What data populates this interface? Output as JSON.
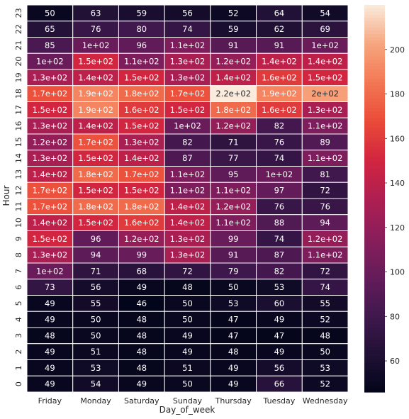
{
  "chart_data": {
    "type": "heatmap",
    "xlabel": "Day_of_week",
    "ylabel": "Hour",
    "x_categories": [
      "Friday",
      "Monday",
      "Saturday",
      "Sunday",
      "Thursday",
      "Tuesday",
      "Wednesday"
    ],
    "y_categories": [
      "23",
      "22",
      "21",
      "20",
      "19",
      "18",
      "17",
      "16",
      "15",
      "14",
      "13",
      "12",
      "11",
      "10",
      "9",
      "8",
      "7",
      "6",
      "5",
      "4",
      "3",
      "2",
      "1",
      "0"
    ],
    "values": [
      [
        50,
        63,
        59,
        56,
        52,
        64,
        54
      ],
      [
        65,
        76,
        80,
        74,
        59,
        62,
        69
      ],
      [
        85,
        100,
        96,
        110,
        91,
        91,
        100
      ],
      [
        100,
        150,
        110,
        130,
        120,
        140,
        140
      ],
      [
        130,
        140,
        150,
        130,
        140,
        160,
        150
      ],
      [
        170,
        190,
        180,
        170,
        220,
        190,
        200
      ],
      [
        150,
        190,
        160,
        150,
        180,
        160,
        130
      ],
      [
        130,
        140,
        150,
        100,
        120,
        82,
        110
      ],
      [
        120,
        170,
        130,
        82,
        71,
        76,
        89
      ],
      [
        130,
        150,
        140,
        87,
        77,
        74,
        110
      ],
      [
        140,
        180,
        170,
        110,
        95,
        100,
        81
      ],
      [
        170,
        150,
        150,
        110,
        110,
        97,
        72
      ],
      [
        170,
        180,
        180,
        140,
        120,
        76,
        76
      ],
      [
        140,
        150,
        160,
        140,
        110,
        88,
        94
      ],
      [
        150,
        96,
        120,
        130,
        99,
        74,
        120
      ],
      [
        130,
        94,
        99,
        130,
        91,
        87,
        110
      ],
      [
        100,
        71,
        68,
        72,
        79,
        82,
        72
      ],
      [
        73,
        56,
        49,
        48,
        50,
        53,
        74
      ],
      [
        49,
        55,
        46,
        50,
        53,
        60,
        55
      ],
      [
        49,
        50,
        48,
        50,
        47,
        49,
        52
      ],
      [
        48,
        50,
        48,
        49,
        47,
        47,
        48
      ],
      [
        49,
        51,
        48,
        49,
        48,
        49,
        50
      ],
      [
        49,
        53,
        48,
        51,
        49,
        56,
        53
      ],
      [
        49,
        54,
        49,
        50,
        49,
        66,
        52
      ]
    ],
    "labels": [
      [
        "50",
        "63",
        "59",
        "56",
        "52",
        "64",
        "54"
      ],
      [
        "65",
        "76",
        "80",
        "74",
        "59",
        "62",
        "69"
      ],
      [
        "85",
        "1e+02",
        "96",
        "1.1e+02",
        "91",
        "91",
        "1e+02"
      ],
      [
        "1e+02",
        "1.5e+02",
        "1.1e+02",
        "1.3e+02",
        "1.2e+02",
        "1.4e+02",
        "1.4e+02"
      ],
      [
        "1.3e+02",
        "1.4e+02",
        "1.5e+02",
        "1.3e+02",
        "1.4e+02",
        "1.6e+02",
        "1.5e+02"
      ],
      [
        "1.7e+02",
        "1.9e+02",
        "1.8e+02",
        "1.7e+02",
        "2.2e+02",
        "1.9e+02",
        "2e+02"
      ],
      [
        "1.5e+02",
        "1.9e+02",
        "1.6e+02",
        "1.5e+02",
        "1.8e+02",
        "1.6e+02",
        "1.3e+02"
      ],
      [
        "1.3e+02",
        "1.4e+02",
        "1.5e+02",
        "1e+02",
        "1.2e+02",
        "82",
        "1.1e+02"
      ],
      [
        "1.2e+02",
        "1.7e+02",
        "1.3e+02",
        "82",
        "71",
        "76",
        "89"
      ],
      [
        "1.3e+02",
        "1.5e+02",
        "1.4e+02",
        "87",
        "77",
        "74",
        "1.1e+02"
      ],
      [
        "1.4e+02",
        "1.8e+02",
        "1.7e+02",
        "1.1e+02",
        "95",
        "1e+02",
        "81"
      ],
      [
        "1.7e+02",
        "1.5e+02",
        "1.5e+02",
        "1.1e+02",
        "1.1e+02",
        "97",
        "72"
      ],
      [
        "1.7e+02",
        "1.8e+02",
        "1.8e+02",
        "1.4e+02",
        "1.2e+02",
        "76",
        "76"
      ],
      [
        "1.4e+02",
        "1.5e+02",
        "1.6e+02",
        "1.4e+02",
        "1.1e+02",
        "88",
        "94"
      ],
      [
        "1.5e+02",
        "96",
        "1.2e+02",
        "1.3e+02",
        "99",
        "74",
        "1.2e+02"
      ],
      [
        "1.3e+02",
        "94",
        "99",
        "1.3e+02",
        "91",
        "87",
        "1.1e+02"
      ],
      [
        "1e+02",
        "71",
        "68",
        "72",
        "79",
        "82",
        "72"
      ],
      [
        "73",
        "56",
        "49",
        "48",
        "50",
        "53",
        "74"
      ],
      [
        "49",
        "55",
        "46",
        "50",
        "53",
        "60",
        "55"
      ],
      [
        "49",
        "50",
        "48",
        "50",
        "47",
        "49",
        "52"
      ],
      [
        "48",
        "50",
        "48",
        "49",
        "47",
        "47",
        "48"
      ],
      [
        "49",
        "51",
        "48",
        "49",
        "48",
        "49",
        "50"
      ],
      [
        "49",
        "53",
        "48",
        "51",
        "49",
        "56",
        "53"
      ],
      [
        "49",
        "54",
        "49",
        "50",
        "49",
        "66",
        "52"
      ]
    ],
    "vmin": 46,
    "vmax": 220,
    "colormap": "rocket",
    "colorbar_ticks": [
      "60",
      "80",
      "100",
      "120",
      "140",
      "160",
      "180",
      "200"
    ],
    "colorbar_tick_values": [
      60,
      80,
      100,
      120,
      140,
      160,
      180,
      200
    ],
    "grid_line_color": "#ffffff",
    "text_color_light": "#ffffff",
    "text_color_dark": "#262626"
  }
}
